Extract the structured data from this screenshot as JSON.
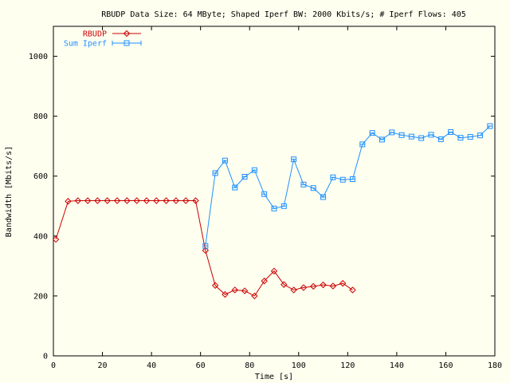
{
  "chart_data": {
    "type": "line",
    "title": "RBUDP Data Size: 64 MByte; Shaped Iperf BW: 2000 Kbits/s; # Iperf Flows: 405",
    "xlabel": "Time [s]",
    "ylabel": "Bandwidth [Mbits/s]",
    "xlim": [
      0,
      180
    ],
    "ylim": [
      0,
      1100
    ],
    "xticks": [
      0,
      20,
      40,
      60,
      80,
      100,
      120,
      140,
      160,
      180
    ],
    "yticks": [
      0,
      200,
      400,
      600,
      800,
      1000
    ],
    "grid": false,
    "legend_position": "top-left",
    "background": "#fffff0",
    "series": [
      {
        "name": "RBUDP",
        "color": "#cc0000",
        "marker": "diamond",
        "x": [
          1,
          6,
          10,
          14,
          18,
          22,
          26,
          30,
          34,
          38,
          42,
          46,
          50,
          54,
          58,
          62,
          66,
          70,
          74,
          78,
          82,
          86,
          90,
          94,
          98,
          102,
          106,
          110,
          114,
          118,
          122
        ],
        "y": [
          389,
          516,
          518,
          518,
          518,
          518,
          518,
          518,
          518,
          518,
          518,
          518,
          518,
          518,
          518,
          352,
          235,
          205,
          220,
          217,
          200,
          250,
          283,
          238,
          220,
          228,
          232,
          237,
          233,
          242,
          220
        ]
      },
      {
        "name": "Sum Iperf",
        "color": "#1e90ff",
        "marker": "square",
        "x": [
          62,
          66,
          70,
          74,
          78,
          82,
          86,
          90,
          94,
          98,
          102,
          106,
          110,
          114,
          118,
          122,
          126,
          130,
          134,
          138,
          142,
          146,
          150,
          154,
          158,
          162,
          166,
          170,
          174,
          178
        ],
        "y": [
          367,
          610,
          652,
          562,
          598,
          620,
          540,
          492,
          500,
          656,
          572,
          560,
          530,
          596,
          588,
          590,
          706,
          744,
          722,
          746,
          737,
          732,
          727,
          738,
          723,
          747,
          728,
          731,
          736,
          767
        ]
      }
    ]
  }
}
